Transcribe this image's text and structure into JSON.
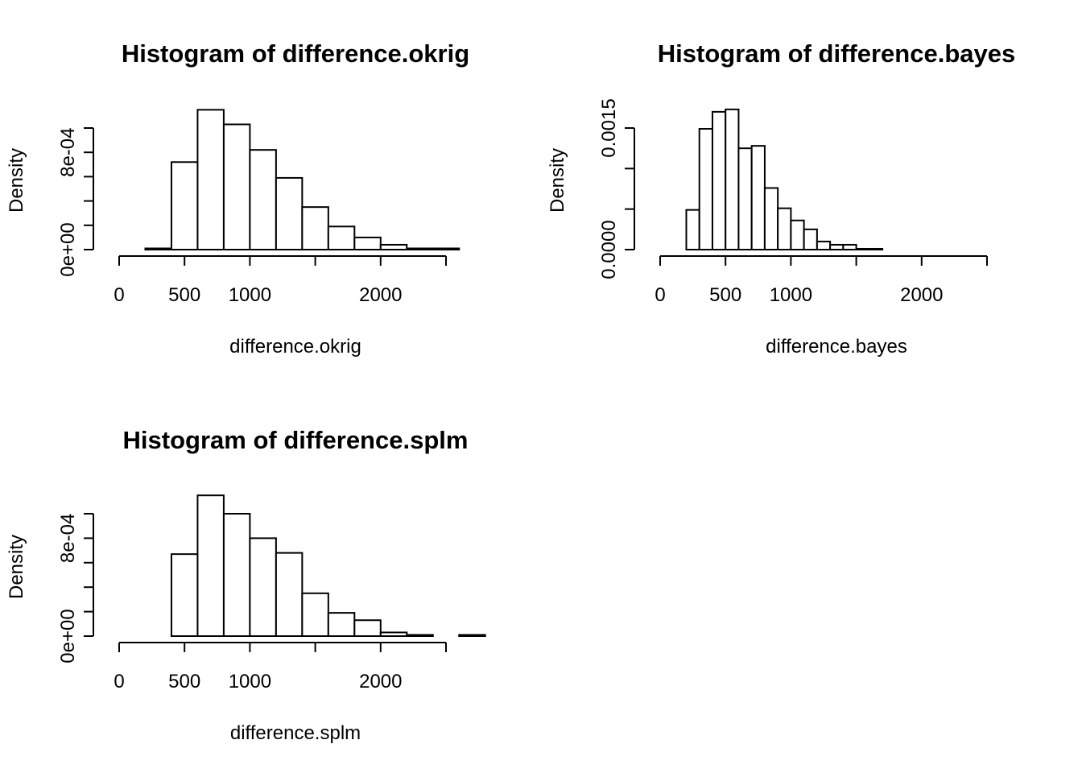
{
  "chart_data": [
    {
      "type": "bar",
      "title": "Histogram of difference.okrig",
      "xlabel": "difference.okrig",
      "ylabel": "Density",
      "xlim": [
        0,
        2500
      ],
      "x_ticks": [
        0,
        500,
        1000,
        1500,
        2000,
        2500
      ],
      "x_tick_labels": [
        "0",
        "500",
        "1000",
        "",
        "2000",
        ""
      ],
      "y_ticks": [
        0,
        0.0002,
        0.0004,
        0.0006,
        0.0008,
        0.001
      ],
      "y_tick_labels": [
        "0e+00",
        "",
        "",
        "",
        "8e-04",
        ""
      ],
      "bins": [
        {
          "x0": 200,
          "x1": 400,
          "value": 1e-05
        },
        {
          "x0": 400,
          "x1": 600,
          "value": 0.00072
        },
        {
          "x0": 600,
          "x1": 800,
          "value": 0.00115
        },
        {
          "x0": 800,
          "x1": 1000,
          "value": 0.00103
        },
        {
          "x0": 1000,
          "x1": 1200,
          "value": 0.00082
        },
        {
          "x0": 1200,
          "x1": 1400,
          "value": 0.00059
        },
        {
          "x0": 1400,
          "x1": 1600,
          "value": 0.00035
        },
        {
          "x0": 1600,
          "x1": 1800,
          "value": 0.00019
        },
        {
          "x0": 1800,
          "x1": 2000,
          "value": 0.0001
        },
        {
          "x0": 2000,
          "x1": 2200,
          "value": 4e-05
        },
        {
          "x0": 2200,
          "x1": 2400,
          "value": 1e-05
        },
        {
          "x0": 2400,
          "x1": 2600,
          "value": 1e-05
        }
      ]
    },
    {
      "type": "bar",
      "title": "Histogram of difference.bayes",
      "xlabel": "difference.bayes",
      "ylabel": "Density",
      "xlim": [
        0,
        2500
      ],
      "x_ticks": [
        0,
        500,
        1000,
        1500,
        2000,
        2500
      ],
      "x_tick_labels": [
        "0",
        "500",
        "1000",
        "",
        "2000",
        ""
      ],
      "y_ticks": [
        0,
        0.0005,
        0.001,
        0.0015
      ],
      "y_tick_labels": [
        "0.0000",
        "",
        "",
        "0.0015"
      ],
      "bins": [
        {
          "x0": 200,
          "x1": 300,
          "value": 0.00049
        },
        {
          "x0": 300,
          "x1": 400,
          "value": 0.00149
        },
        {
          "x0": 400,
          "x1": 500,
          "value": 0.0017
        },
        {
          "x0": 500,
          "x1": 600,
          "value": 0.00173
        },
        {
          "x0": 600,
          "x1": 700,
          "value": 0.00125
        },
        {
          "x0": 700,
          "x1": 800,
          "value": 0.00128
        },
        {
          "x0": 800,
          "x1": 900,
          "value": 0.00076
        },
        {
          "x0": 900,
          "x1": 1000,
          "value": 0.00051
        },
        {
          "x0": 1000,
          "x1": 1100,
          "value": 0.00036
        },
        {
          "x0": 1100,
          "x1": 1200,
          "value": 0.00025
        },
        {
          "x0": 1200,
          "x1": 1300,
          "value": 0.0001
        },
        {
          "x0": 1300,
          "x1": 1400,
          "value": 6e-05
        },
        {
          "x0": 1400,
          "x1": 1500,
          "value": 6e-05
        },
        {
          "x0": 1500,
          "x1": 1600,
          "value": 1e-05
        },
        {
          "x0": 1600,
          "x1": 1700,
          "value": 1e-05
        }
      ]
    },
    {
      "type": "bar",
      "title": "Histogram of difference.splm",
      "xlabel": "difference.splm",
      "ylabel": "Density",
      "xlim": [
        0,
        2500
      ],
      "x_ticks": [
        0,
        500,
        1000,
        1500,
        2000,
        2500
      ],
      "x_tick_labels": [
        "0",
        "500",
        "1000",
        "",
        "2000",
        ""
      ],
      "y_ticks": [
        0,
        0.0002,
        0.0004,
        0.0006,
        0.0008,
        0.001
      ],
      "y_tick_labels": [
        "0e+00",
        "",
        "",
        "",
        "8e-04",
        ""
      ],
      "bins": [
        {
          "x0": 400,
          "x1": 600,
          "value": 0.00067
        },
        {
          "x0": 600,
          "x1": 800,
          "value": 0.00115
        },
        {
          "x0": 800,
          "x1": 1000,
          "value": 0.001
        },
        {
          "x0": 1000,
          "x1": 1200,
          "value": 0.0008
        },
        {
          "x0": 1200,
          "x1": 1400,
          "value": 0.00068
        },
        {
          "x0": 1400,
          "x1": 1600,
          "value": 0.00035
        },
        {
          "x0": 1600,
          "x1": 1800,
          "value": 0.00019
        },
        {
          "x0": 1800,
          "x1": 2000,
          "value": 0.00013
        },
        {
          "x0": 2000,
          "x1": 2200,
          "value": 3e-05
        },
        {
          "x0": 2200,
          "x1": 2400,
          "value": 1e-05
        },
        {
          "x0": 2400,
          "x1": 2600,
          "value": 0
        },
        {
          "x0": 2600,
          "x1": 2800,
          "value": 1e-05
        }
      ]
    }
  ]
}
